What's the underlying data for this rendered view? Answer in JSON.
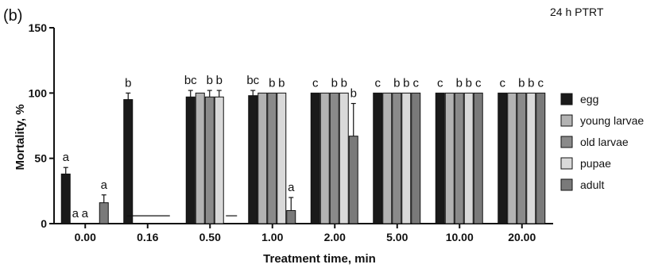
{
  "chart_data": {
    "type": "bar",
    "panel_label": "(b)",
    "annotation": "24 h PTRT",
    "xlabel": "Treatment time, min",
    "ylabel": "Mortality, %",
    "ylim": [
      0,
      150
    ],
    "yticks": [
      "0",
      "50",
      "100",
      "150"
    ],
    "categories": [
      "0.00",
      "0.16",
      "0.50",
      "1.00",
      "2.00",
      "5.00",
      "10.00",
      "20.00"
    ],
    "legend_position": "right",
    "series": [
      {
        "name": "egg",
        "color": "#1a1a1a",
        "values": [
          38,
          95,
          97,
          98,
          100,
          100,
          100,
          100
        ],
        "errors": [
          5,
          5,
          5,
          4,
          0,
          0,
          0,
          0
        ],
        "labels": [
          "a",
          "b",
          "bc",
          "bc",
          "c",
          "c",
          "c",
          "c"
        ]
      },
      {
        "name": "young larvae",
        "color": "#b3b3b3",
        "values": [
          0,
          null,
          100,
          100,
          100,
          100,
          100,
          100
        ],
        "errors": [
          0,
          null,
          0,
          0,
          0,
          0,
          0,
          0
        ],
        "labels": [
          "a",
          "",
          "",
          "",
          "",
          "",
          "",
          ""
        ]
      },
      {
        "name": "old larvae",
        "color": "#8a8a8a",
        "values": [
          0,
          null,
          97,
          100,
          100,
          100,
          100,
          100
        ],
        "errors": [
          0,
          null,
          5,
          0,
          0,
          0,
          0,
          0
        ],
        "labels": [
          "a",
          "",
          "b",
          "b",
          "b",
          "b",
          "b",
          "b"
        ]
      },
      {
        "name": "pupae",
        "color": "#d9d9d9",
        "values": [
          null,
          null,
          97,
          100,
          100,
          100,
          100,
          100
        ],
        "errors": [
          null,
          null,
          5,
          0,
          0,
          0,
          0,
          0
        ],
        "labels": [
          "",
          "",
          "b",
          "b",
          "b",
          "b",
          "b",
          "b"
        ]
      },
      {
        "name": "adult",
        "color": "#7a7a7a",
        "values": [
          16,
          null,
          null,
          10,
          67,
          100,
          100,
          100
        ],
        "errors": [
          6,
          null,
          null,
          10,
          25,
          0,
          0,
          0
        ],
        "labels": [
          "a",
          "",
          "",
          "a",
          "b",
          "c",
          "c",
          "c"
        ]
      }
    ]
  }
}
